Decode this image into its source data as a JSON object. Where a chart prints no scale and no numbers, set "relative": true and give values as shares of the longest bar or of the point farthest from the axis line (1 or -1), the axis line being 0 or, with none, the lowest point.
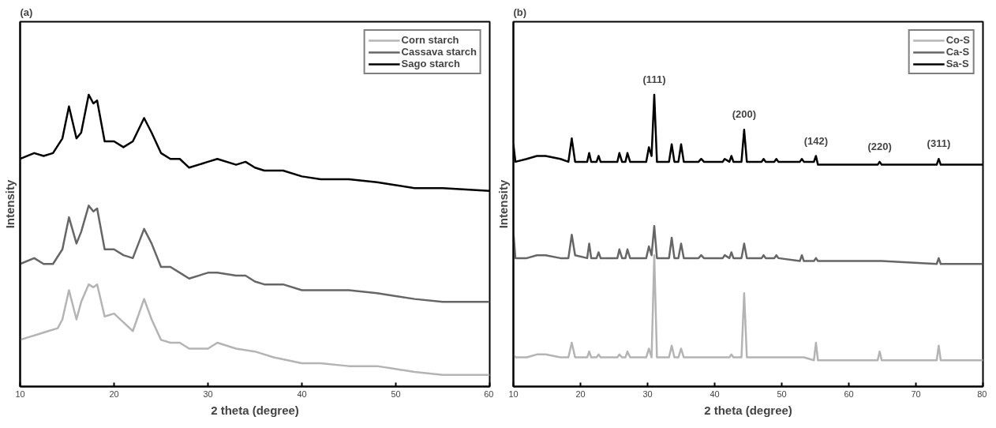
{
  "chart_data": [
    {
      "type": "line",
      "title": "(a)",
      "xlabel": "2 theta (degree)",
      "ylabel": "Intensity",
      "relative": true,
      "tick_labels": "x",
      "grid": false,
      "legend": "top right",
      "xlim": [
        10,
        60
      ],
      "xticks": [
        10,
        20,
        30,
        40,
        50,
        60
      ],
      "series": [
        {
          "name": "Corn starch",
          "color": "#b4b4b4",
          "x": [
            10,
            11,
            12,
            13,
            14,
            14.5,
            15.2,
            16,
            16.5,
            17.3,
            17.8,
            18.2,
            19,
            20,
            21,
            22,
            23.2,
            24,
            25,
            26,
            27,
            28,
            30,
            31,
            33,
            35,
            37,
            40,
            42,
            45,
            48,
            50,
            52,
            55,
            60
          ],
          "values": [
            0.16,
            0.17,
            0.18,
            0.19,
            0.2,
            0.23,
            0.33,
            0.23,
            0.29,
            0.35,
            0.34,
            0.35,
            0.24,
            0.25,
            0.22,
            0.19,
            0.3,
            0.23,
            0.16,
            0.15,
            0.15,
            0.13,
            0.13,
            0.15,
            0.13,
            0.12,
            0.1,
            0.08,
            0.08,
            0.07,
            0.07,
            0.06,
            0.05,
            0.04,
            0.04
          ]
        },
        {
          "name": "Cassava starch",
          "color": "#666666",
          "x": [
            10,
            11.5,
            12.5,
            13.5,
            14.5,
            15.2,
            16,
            16.5,
            17.3,
            17.8,
            18.2,
            19,
            20,
            21,
            22,
            23.2,
            24,
            25,
            26,
            27,
            28,
            30,
            31,
            33,
            34,
            35,
            36,
            38,
            40,
            42,
            45,
            48,
            50,
            52,
            55,
            60
          ],
          "values": [
            0.42,
            0.44,
            0.42,
            0.42,
            0.47,
            0.58,
            0.49,
            0.53,
            0.62,
            0.6,
            0.61,
            0.47,
            0.47,
            0.45,
            0.44,
            0.54,
            0.49,
            0.41,
            0.41,
            0.39,
            0.37,
            0.39,
            0.39,
            0.38,
            0.38,
            0.36,
            0.35,
            0.35,
            0.33,
            0.33,
            0.33,
            0.32,
            0.31,
            0.3,
            0.29,
            0.29
          ]
        },
        {
          "name": "Sago starch",
          "color": "#000000",
          "x": [
            10,
            11.5,
            12.5,
            13.5,
            14.5,
            15.2,
            16,
            16.5,
            17.3,
            17.8,
            18.2,
            19,
            20,
            21,
            22,
            23.2,
            24,
            25,
            26,
            27,
            28,
            30,
            31,
            33,
            34,
            35,
            36,
            38,
            40,
            42,
            45,
            48,
            50,
            52,
            55,
            60
          ],
          "values": [
            0.78,
            0.8,
            0.79,
            0.8,
            0.85,
            0.96,
            0.85,
            0.87,
            1.0,
            0.97,
            0.98,
            0.84,
            0.84,
            0.82,
            0.84,
            0.92,
            0.87,
            0.8,
            0.78,
            0.78,
            0.75,
            0.77,
            0.78,
            0.76,
            0.77,
            0.75,
            0.74,
            0.74,
            0.72,
            0.71,
            0.71,
            0.7,
            0.69,
            0.68,
            0.68,
            0.67
          ]
        }
      ]
    },
    {
      "type": "line",
      "title": "(b)",
      "xlabel": "2 theta (degree)",
      "ylabel": "Intensity",
      "relative": true,
      "tick_labels": "x",
      "grid": false,
      "legend": "top right",
      "xlim": [
        10,
        80
      ],
      "xticks": [
        10,
        20,
        30,
        40,
        50,
        60,
        70,
        80
      ],
      "x": [
        10,
        10.3,
        12,
        13.5,
        14.8,
        17,
        18.2,
        18.7,
        19.2,
        21,
        21.3,
        21.6,
        22.4,
        22.7,
        23,
        25.5,
        25.8,
        26.2,
        26.7,
        27,
        27.4,
        29.8,
        30.2,
        30.6,
        31,
        31.4,
        33.2,
        33.6,
        34,
        34.6,
        35,
        35.4,
        37.6,
        38,
        38.4,
        41.2,
        41.5,
        42.2,
        42.5,
        42.8,
        44,
        44.4,
        44.8,
        47,
        47.3,
        47.6,
        48.9,
        49.2,
        49.5,
        52.7,
        53,
        53.3,
        54.8,
        55.1,
        55.4,
        64.3,
        64.6,
        64.9,
        73.1,
        73.4,
        73.7,
        80
      ],
      "annotations": [
        {
          "text": "(111)",
          "x": 31,
          "y": 1.0
        },
        {
          "text": "(200)",
          "x": 44.4,
          "y": 0.88
        },
        {
          "text": "(142)",
          "x": 55.1,
          "y": 0.79
        },
        {
          "text": "(220)",
          "x": 64.6,
          "y": 0.77
        },
        {
          "text": "(311)",
          "x": 73.4,
          "y": 0.78
        }
      ],
      "series": [
        {
          "name": "Co-S",
          "color": "#b4b4b4",
          "values": [
            0.11,
            0.1,
            0.1,
            0.11,
            0.11,
            0.1,
            0.1,
            0.15,
            0.1,
            0.1,
            0.12,
            0.1,
            0.1,
            0.11,
            0.1,
            0.1,
            0.11,
            0.1,
            0.1,
            0.12,
            0.1,
            0.1,
            0.13,
            0.1,
            0.45,
            0.1,
            0.1,
            0.14,
            0.1,
            0.1,
            0.13,
            0.1,
            0.1,
            0.1,
            0.1,
            0.1,
            0.1,
            0.1,
            0.11,
            0.1,
            0.1,
            0.32,
            0.1,
            0.1,
            0.1,
            0.1,
            0.1,
            0.1,
            0.1,
            0.1,
            0.1,
            0.1,
            0.09,
            0.15,
            0.09,
            0.09,
            0.12,
            0.09,
            0.09,
            0.14,
            0.09,
            0.09
          ]
        },
        {
          "name": "Ca-S",
          "color": "#666666",
          "values": [
            0.53,
            0.44,
            0.44,
            0.45,
            0.45,
            0.44,
            0.44,
            0.52,
            0.45,
            0.44,
            0.49,
            0.44,
            0.44,
            0.46,
            0.44,
            0.44,
            0.47,
            0.44,
            0.44,
            0.47,
            0.44,
            0.44,
            0.48,
            0.45,
            0.55,
            0.44,
            0.44,
            0.51,
            0.44,
            0.44,
            0.49,
            0.44,
            0.44,
            0.45,
            0.44,
            0.44,
            0.45,
            0.44,
            0.46,
            0.44,
            0.44,
            0.49,
            0.44,
            0.44,
            0.45,
            0.44,
            0.44,
            0.45,
            0.44,
            0.43,
            0.45,
            0.43,
            0.43,
            0.44,
            0.43,
            0.43,
            0.43,
            0.43,
            0.42,
            0.44,
            0.42,
            0.42
          ]
        },
        {
          "name": "Sa-S",
          "color": "#000000",
          "values": [
            0.83,
            0.77,
            0.78,
            0.79,
            0.79,
            0.78,
            0.77,
            0.85,
            0.77,
            0.77,
            0.8,
            0.77,
            0.77,
            0.79,
            0.77,
            0.77,
            0.8,
            0.77,
            0.77,
            0.8,
            0.77,
            0.77,
            0.82,
            0.79,
            1.0,
            0.77,
            0.77,
            0.83,
            0.77,
            0.77,
            0.83,
            0.77,
            0.77,
            0.78,
            0.77,
            0.77,
            0.78,
            0.77,
            0.79,
            0.77,
            0.77,
            0.88,
            0.77,
            0.77,
            0.78,
            0.77,
            0.77,
            0.78,
            0.77,
            0.77,
            0.78,
            0.77,
            0.77,
            0.79,
            0.76,
            0.76,
            0.77,
            0.76,
            0.76,
            0.78,
            0.76,
            0.76
          ]
        }
      ]
    }
  ]
}
